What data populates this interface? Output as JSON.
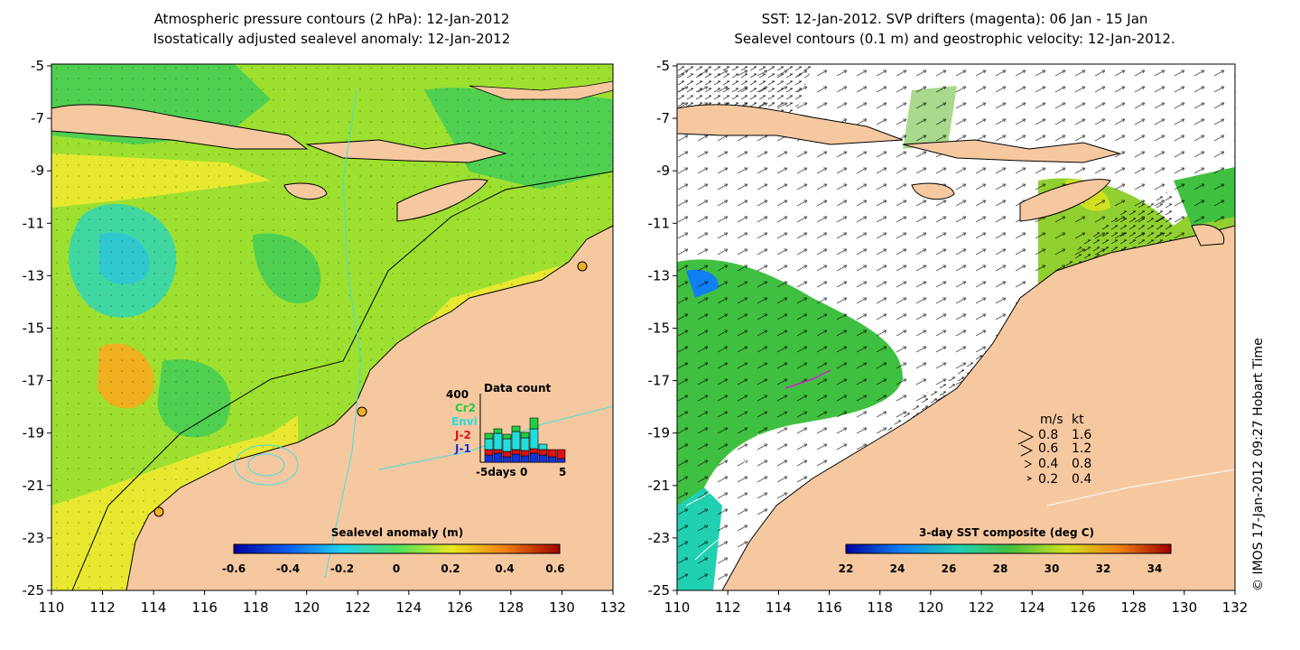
{
  "left_panel": {
    "title_line1": "Atmospheric pressure contours (2 hPa): 12-Jan-2012",
    "title_line2": "Isostatically adjusted sealevel anomaly: 12-Jan-2012",
    "colorbar_label": "Sealevel anomaly (m)",
    "colorbar_ticks": [
      "-0.6",
      "-0.4",
      "-0.2",
      "0",
      "0.2",
      "0.4",
      "0.6"
    ],
    "inset": {
      "title": "Data count",
      "max_label": "400",
      "legend": [
        {
          "label": "Cr2",
          "color": "#22cc44"
        },
        {
          "label": "Envi",
          "color": "#22dddd"
        },
        {
          "label": "J-2",
          "color": "#dd1111"
        },
        {
          "label": "J-1",
          "color": "#1133dd"
        }
      ],
      "x_ticks": [
        "-5days",
        "0",
        "5"
      ]
    }
  },
  "right_panel": {
    "title_line1": "SST: 12-Jan-2012. SVP drifters (magenta): 06 Jan - 15 Jan",
    "title_line2": "Sealevel contours (0.1 m) and geostrophic velocity: 12-Jan-2012.",
    "colorbar_label": "3-day SST composite (deg C)",
    "colorbar_ticks": [
      "22",
      "24",
      "26",
      "28",
      "30",
      "32",
      "34"
    ],
    "speed_legend": {
      "header_ms": "m/s",
      "header_kt": "kt",
      "rows": [
        {
          "ms": "0.8",
          "kt": "1.6"
        },
        {
          "ms": "0.6",
          "kt": "1.2"
        },
        {
          "ms": "0.4",
          "kt": "0.8"
        },
        {
          "ms": "0.2",
          "kt": "0.4"
        }
      ]
    }
  },
  "axes": {
    "lat_ticks": [
      "-5",
      "-7",
      "-9",
      "-11",
      "-13",
      "-15",
      "-17",
      "-19",
      "-21",
      "-23",
      "-25"
    ],
    "lon_ticks": [
      "110",
      "112",
      "114",
      "116",
      "118",
      "120",
      "122",
      "124",
      "126",
      "128",
      "130",
      "132"
    ]
  },
  "credit": "© IMOS 17-Jan-2012 09:27 Hobart Time",
  "colors": {
    "land": "#f6c8a0",
    "ocean_green": "#9ee030",
    "ocean_yellow": "#e8e830",
    "ocean_orange": "#f0b020",
    "contour_cyan": "#40e0e0",
    "arrow": "#000000"
  }
}
